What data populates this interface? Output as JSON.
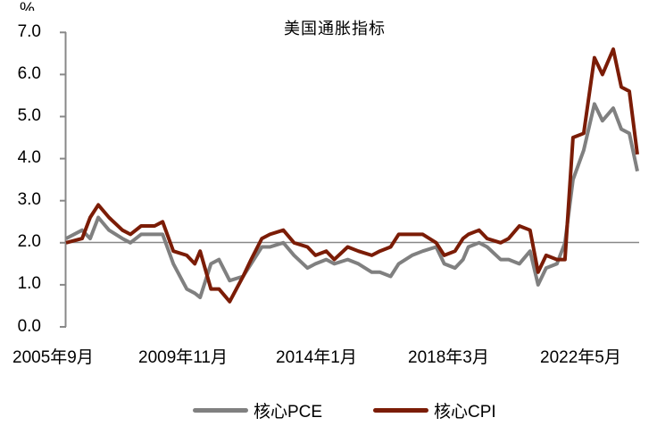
{
  "chart_data": {
    "type": "line",
    "title": "美国通胀指标",
    "ylabel": "%",
    "xlabel": "",
    "ylim": [
      0,
      7
    ],
    "yticks": [
      "0.0",
      "1.0",
      "2.0",
      "3.0",
      "4.0",
      "5.0",
      "6.0",
      "7.0"
    ],
    "xticks": [
      "2005年9月",
      "2009年11月",
      "2014年1月",
      "2018年3月",
      "2022年5月"
    ],
    "reference_line": 2.0,
    "grid": false,
    "legend_position": "bottom",
    "x": [
      "2005-09",
      "2006-03",
      "2006-06",
      "2006-09",
      "2007-01",
      "2007-06",
      "2007-09",
      "2008-01",
      "2008-06",
      "2008-09",
      "2009-01",
      "2009-06",
      "2009-09",
      "2009-11",
      "2010-03",
      "2010-06",
      "2010-10",
      "2011-03",
      "2011-06",
      "2011-10",
      "2012-01",
      "2012-06",
      "2012-10",
      "2013-03",
      "2013-06",
      "2013-10",
      "2014-01",
      "2014-06",
      "2014-10",
      "2015-03",
      "2015-06",
      "2015-10",
      "2016-01",
      "2016-06",
      "2016-10",
      "2017-03",
      "2017-06",
      "2017-10",
      "2018-01",
      "2018-03",
      "2018-07",
      "2018-10",
      "2019-03",
      "2019-06",
      "2019-10",
      "2020-02",
      "2020-05",
      "2020-08",
      "2020-12",
      "2021-03",
      "2021-06",
      "2021-10",
      "2022-02",
      "2022-05",
      "2022-09",
      "2022-12",
      "2023-03",
      "2023-06"
    ],
    "series": [
      {
        "name": "核心PCE",
        "color": "#808080",
        "values": [
          2.1,
          2.3,
          2.1,
          2.6,
          2.3,
          2.1,
          2.0,
          2.2,
          2.2,
          2.2,
          1.5,
          0.9,
          0.8,
          0.7,
          1.5,
          1.6,
          1.1,
          1.2,
          1.5,
          1.9,
          1.9,
          2.0,
          1.7,
          1.4,
          1.5,
          1.6,
          1.5,
          1.6,
          1.5,
          1.3,
          1.3,
          1.2,
          1.5,
          1.7,
          1.8,
          1.9,
          1.5,
          1.4,
          1.6,
          1.9,
          2.0,
          1.9,
          1.6,
          1.6,
          1.5,
          1.8,
          1.0,
          1.4,
          1.5,
          2.0,
          3.5,
          4.2,
          5.3,
          4.9,
          5.2,
          4.7,
          4.6,
          3.7
        ]
      },
      {
        "name": "核心CPI",
        "color": "#7B1C06",
        "values": [
          2.0,
          2.1,
          2.6,
          2.9,
          2.6,
          2.3,
          2.2,
          2.4,
          2.4,
          2.5,
          1.8,
          1.7,
          1.5,
          1.8,
          0.9,
          0.9,
          0.6,
          1.2,
          1.6,
          2.1,
          2.2,
          2.3,
          2.0,
          1.9,
          1.7,
          1.8,
          1.6,
          1.9,
          1.8,
          1.7,
          1.8,
          1.9,
          2.2,
          2.2,
          2.2,
          2.0,
          1.7,
          1.8,
          2.1,
          2.2,
          2.3,
          2.1,
          2.0,
          2.1,
          2.4,
          2.3,
          1.3,
          1.7,
          1.6,
          1.6,
          4.5,
          4.6,
          6.4,
          6.0,
          6.6,
          5.7,
          5.6,
          4.1
        ]
      }
    ]
  },
  "labels": {
    "unit": "%",
    "title": "美国通胀指标",
    "y": [
      "7.0",
      "6.0",
      "5.0",
      "4.0",
      "3.0",
      "2.0",
      "1.0",
      "0.0"
    ],
    "x": [
      "2005年9月",
      "2009年11月",
      "2014年1月",
      "2018年3月",
      "2022年5月"
    ],
    "legend": [
      "核心PCE",
      "核心CPI"
    ]
  },
  "colors": {
    "pce": "#808080",
    "cpi": "#7B1C06",
    "axis": "#888888",
    "ref": "#888888"
  }
}
